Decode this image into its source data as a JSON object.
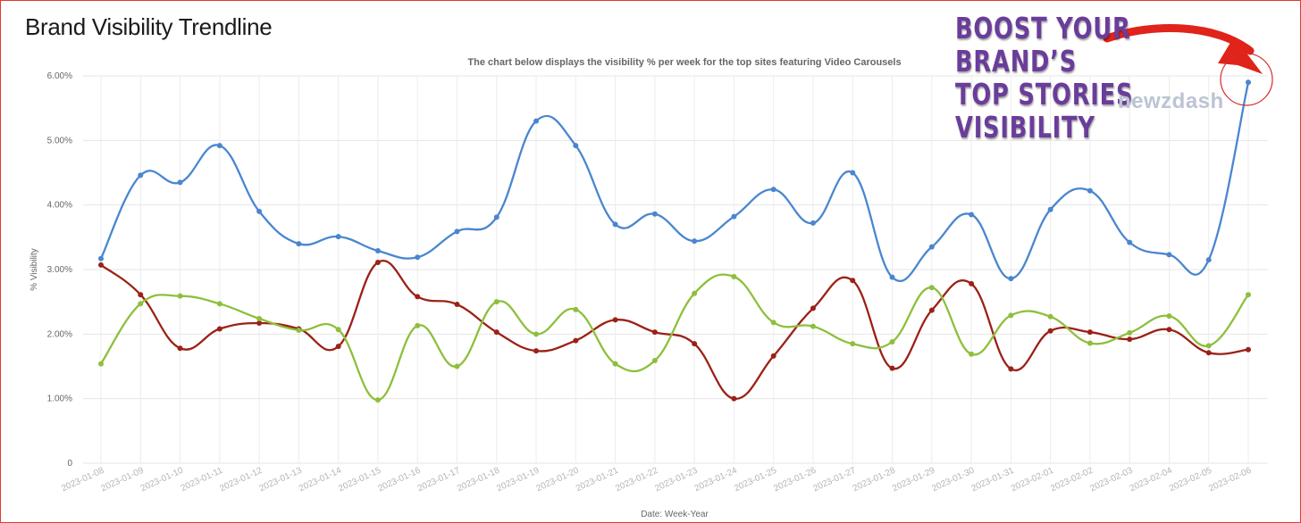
{
  "page": {
    "title": "Brand Visibility Trendline",
    "subtitle": "The chart below displays the visibility % per week for the top sites featuring Video Carousels"
  },
  "promo": {
    "lines": [
      "BOOST YOUR",
      "BRAND’S",
      "TOP STORIES",
      "VISIBILITY"
    ],
    "brand": "newzdash",
    "arrow_color": "#e0231b",
    "highlight_color": "#d42a2a"
  },
  "chart_data": {
    "type": "line",
    "xlabel": "Date: Week-Year",
    "ylabel": "% Visibility",
    "ylim": [
      0,
      6
    ],
    "yticks": [
      {
        "value": 0,
        "label": "0"
      },
      {
        "value": 1,
        "label": "1.00%"
      },
      {
        "value": 2,
        "label": "2.00%"
      },
      {
        "value": 3,
        "label": "3.00%"
      },
      {
        "value": 4,
        "label": "4.00%"
      },
      {
        "value": 5,
        "label": "5.00%"
      },
      {
        "value": 6,
        "label": "6.00%"
      }
    ],
    "grid": true,
    "categories": [
      "2023-01-08",
      "2023-01-09",
      "2023-01-10",
      "2023-01-11",
      "2023-01-12",
      "2023-01-13",
      "2023-01-14",
      "2023-01-15",
      "2023-01-16",
      "2023-01-17",
      "2023-01-18",
      "2023-01-19",
      "2023-01-20",
      "2023-01-21",
      "2023-01-22",
      "2023-01-23",
      "2023-01-24",
      "2023-01-25",
      "2023-01-26",
      "2023-01-27",
      "2023-01-28",
      "2023-01-29",
      "2023-01-30",
      "2023-01-31",
      "2023-02-01",
      "2023-02-02",
      "2023-02-03",
      "2023-02-04",
      "2023-02-05",
      "2023-02-06"
    ],
    "series": [
      {
        "color": "#4a86cf",
        "values": [
          3.17,
          4.46,
          4.35,
          4.92,
          3.9,
          3.4,
          3.51,
          3.29,
          3.19,
          3.59,
          3.81,
          5.3,
          4.92,
          3.7,
          3.86,
          3.44,
          3.82,
          4.24,
          3.72,
          4.5,
          2.88,
          3.35,
          3.85,
          2.86,
          3.93,
          4.22,
          3.42,
          3.23,
          3.15,
          5.9
        ]
      },
      {
        "color": "#9b2116",
        "values": [
          3.07,
          2.61,
          1.78,
          2.08,
          2.17,
          2.08,
          1.81,
          3.11,
          2.58,
          2.46,
          2.03,
          1.74,
          1.9,
          2.22,
          2.03,
          1.85,
          1.0,
          1.66,
          2.4,
          2.83,
          1.47,
          2.37,
          2.78,
          1.46,
          2.05,
          2.03,
          1.92,
          2.07,
          1.71,
          1.76
        ]
      },
      {
        "color": "#8ebf3b",
        "values": [
          1.54,
          2.47,
          2.59,
          2.47,
          2.24,
          2.06,
          2.07,
          0.98,
          2.13,
          1.5,
          2.5,
          2.0,
          2.38,
          1.54,
          1.59,
          2.63,
          2.89,
          2.18,
          2.12,
          1.85,
          1.88,
          2.72,
          1.69,
          2.29,
          2.27,
          1.86,
          2.02,
          2.28,
          1.82,
          2.61
        ]
      }
    ]
  }
}
